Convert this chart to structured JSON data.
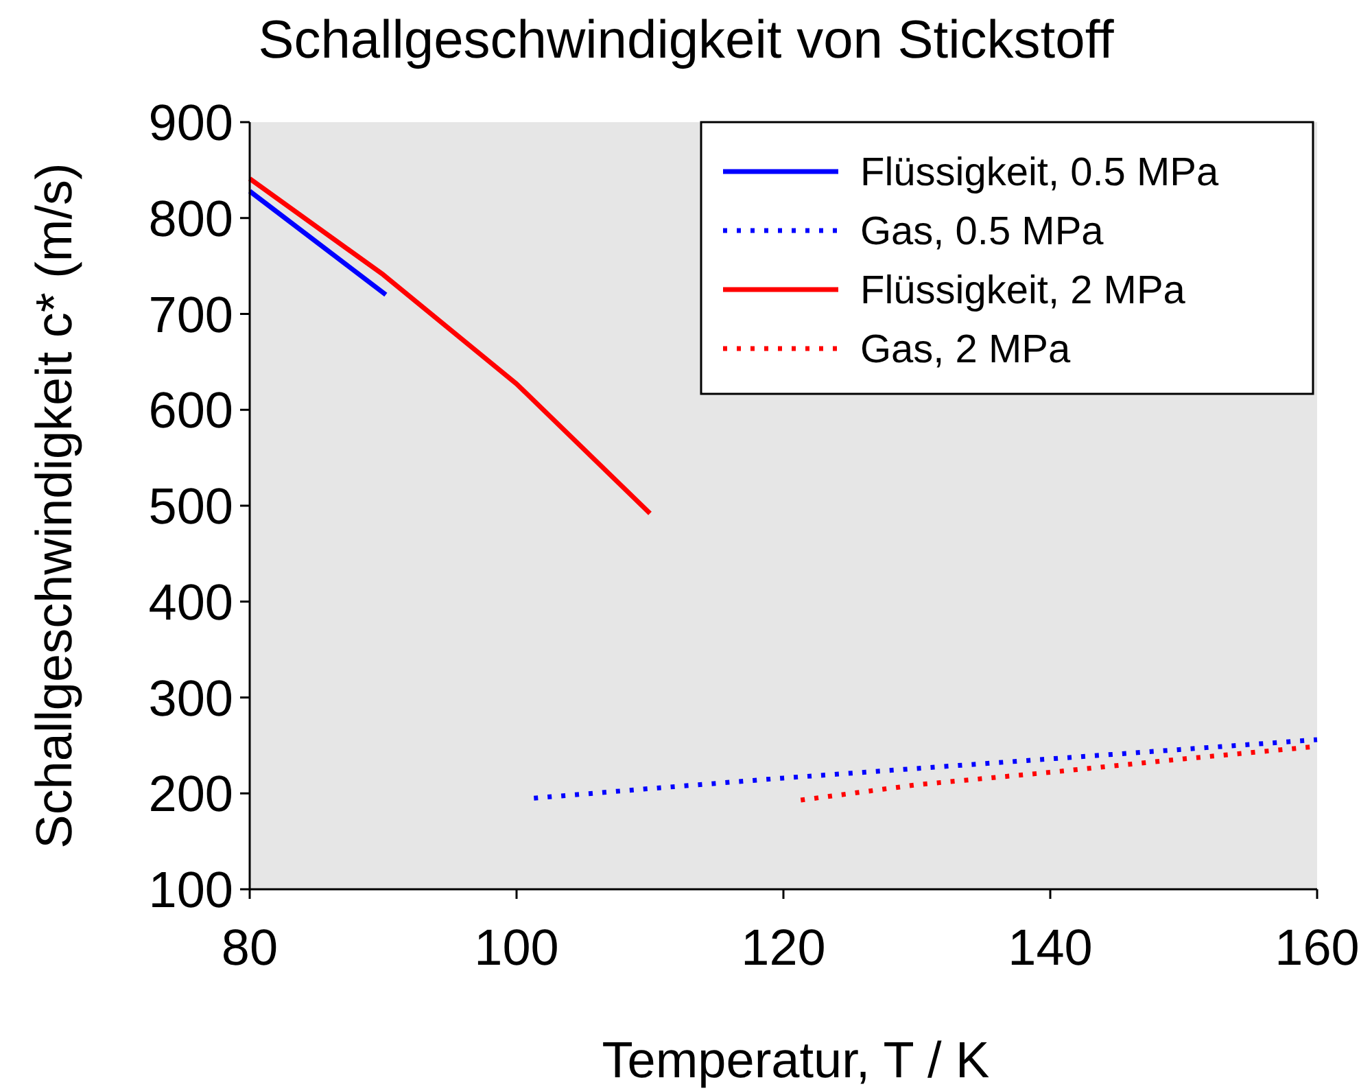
{
  "chart_data": {
    "type": "line",
    "title": "Schallgeschwindigkeit von Stickstoff",
    "xlabel": "Temperatur, T / K",
    "ylabel": "Schallgeschwindigkeit c* (m/s)",
    "xlim": [
      80,
      160
    ],
    "xticks": [
      80,
      100,
      120,
      140,
      160
    ],
    "ylim": [
      100,
      900
    ],
    "yticks": [
      100,
      200,
      300,
      400,
      500,
      600,
      700,
      800,
      900
    ],
    "grid": false,
    "legend": "top right",
    "marker": "none",
    "series": [
      {
        "name": "Flüssigkeit, 0.5 MPa",
        "color": "#0000ff",
        "line_style": "solid",
        "x": [
          80,
          90.2
        ],
        "values": [
          828,
          720
        ]
      },
      {
        "name": "Gas, 0.5 MPa",
        "color": "#0000ff",
        "line_style": "dotted",
        "x": [
          101.3,
          110,
          120,
          130,
          140,
          150,
          160
        ],
        "values": [
          195,
          205,
          216,
          226,
          236,
          246,
          256
        ]
      },
      {
        "name": "Flüssigkeit, 2 MPa",
        "color": "#ff0000",
        "line_style": "solid",
        "x": [
          80,
          90,
          100,
          110
        ],
        "values": [
          841,
          741,
          627,
          492
        ]
      },
      {
        "name": "Gas, 2 MPa",
        "color": "#ff0000",
        "line_style": "dotted",
        "x": [
          121.3,
          130,
          140,
          150,
          160
        ],
        "values": [
          193,
          209,
          222,
          236,
          249
        ]
      }
    ]
  }
}
